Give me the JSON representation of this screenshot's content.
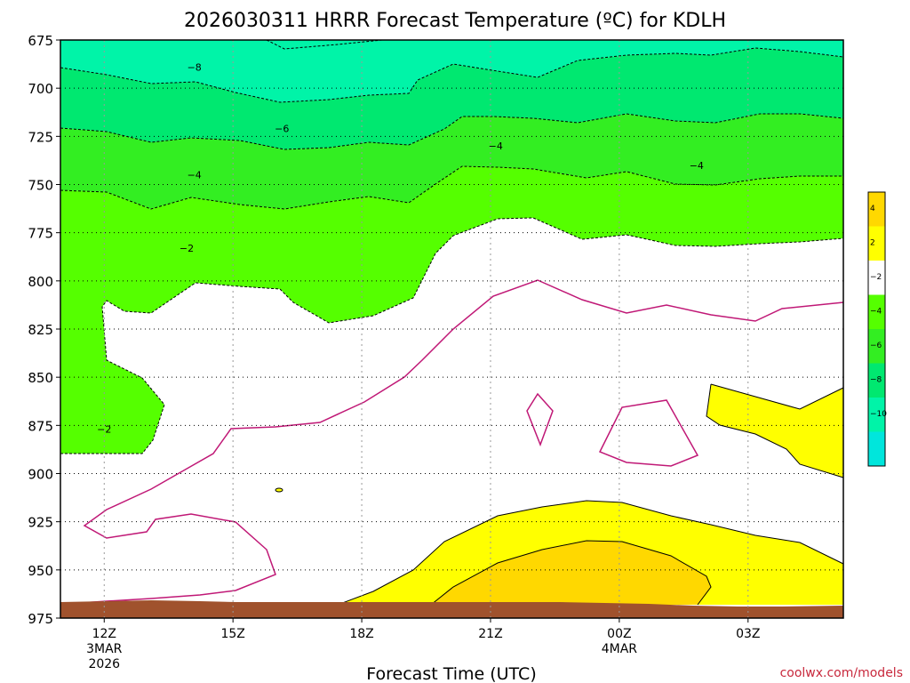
{
  "chart_data": {
    "type": "heatmap",
    "title": "2026030311 HRRR Forecast Temperature (ºC) for KDLH",
    "xlabel": "Forecast Time (UTC)",
    "ylabel": "",
    "y_axis": {
      "ticks": [
        675,
        700,
        725,
        750,
        775,
        800,
        825,
        850,
        875,
        900,
        925,
        950,
        975
      ],
      "tick_labels": [
        "675",
        "700",
        "725",
        "750",
        "775",
        "800",
        "825",
        "850",
        "875",
        "900",
        "925",
        "950",
        "975"
      ],
      "range": [
        675,
        975
      ],
      "inverted": true
    },
    "x_axis": {
      "range_hours": [
        -1.7,
        28.7
      ],
      "ticks": [
        {
          "hour": 0,
          "lines": [
            "12Z",
            "3MAR",
            "2026"
          ]
        },
        {
          "hour": 5,
          "lines": [
            "15Z"
          ]
        },
        {
          "hour": 10,
          "lines": [
            "18Z"
          ]
        },
        {
          "hour": 15,
          "lines": [
            "21Z"
          ]
        },
        {
          "hour": 20,
          "lines": [
            "00Z",
            "4MAR"
          ]
        },
        {
          "hour": 25,
          "lines": [
            "03Z"
          ]
        }
      ]
    },
    "grid": true,
    "colorbar": {
      "levels": [
        {
          "label": "4",
          "color": "#ffd800"
        },
        {
          "label": "2",
          "color": "#ffff00"
        },
        {
          "label": "−2",
          "color": "#ffffff"
        },
        {
          "label": "−4",
          "color": "#55ff00"
        },
        {
          "label": "−6",
          "color": "#33ee22"
        },
        {
          "label": "−8",
          "color": "#00e870"
        },
        {
          "label": "−10",
          "color": "#00f4a8"
        },
        {
          "label": "",
          "color": "#00e6dc"
        }
      ]
    },
    "contour_labels": [
      {
        "text": "−8",
        "hour": 3.5,
        "hpa": 689
      },
      {
        "text": "−6",
        "hour": 6.9,
        "hpa": 721
      },
      {
        "text": "−4",
        "hour": 3.5,
        "hpa": 745
      },
      {
        "text": "−4",
        "hour": 15.2,
        "hpa": 730
      },
      {
        "text": "−4",
        "hour": 23.0,
        "hpa": 740
      },
      {
        "text": "−2",
        "hour": 3.2,
        "hpa": 783
      },
      {
        "text": "−2",
        "hour": 0.0,
        "hpa": 877
      }
    ],
    "colors": {
      "ground": "#a0522d",
      "contour_dashed": "#000000",
      "zero_line": "#c01876"
    }
  },
  "credit": "coolwx.com/models"
}
